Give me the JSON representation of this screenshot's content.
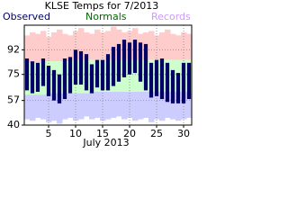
{
  "chart_data": {
    "type": "floating-bar",
    "title": "KLSE Temps for 7/2013",
    "xlabel": "July 2013",
    "categories": [
      1,
      2,
      3,
      4,
      5,
      6,
      7,
      8,
      9,
      10,
      11,
      12,
      13,
      14,
      15,
      16,
      17,
      18,
      19,
      20,
      21,
      22,
      23,
      24,
      25,
      26,
      27,
      28,
      29,
      30,
      31
    ],
    "series": [
      {
        "name": "Records",
        "color": "#cc99ff",
        "band_colors": [
          "#ffcccc",
          "#ccccff"
        ],
        "high": [
          102,
          104,
          103,
          105,
          101,
          104,
          106,
          103,
          102,
          105,
          107,
          104,
          103,
          106,
          104,
          105,
          108,
          106,
          104,
          105,
          107,
          103,
          104,
          105,
          102,
          104,
          106,
          103,
          102,
          104,
          103
        ],
        "low": [
          44,
          43,
          45,
          44,
          42,
          43,
          41,
          44,
          45,
          43,
          44,
          46,
          44,
          45,
          43,
          44,
          45,
          46,
          44,
          45,
          43,
          44,
          45,
          42,
          44,
          43,
          45,
          44,
          43,
          44,
          45
        ]
      },
      {
        "name": "Normals",
        "color": "#006600",
        "band_color": "#ccffcc",
        "high": [
          83,
          83,
          83,
          84,
          84,
          84,
          84,
          84,
          84,
          85,
          85,
          85,
          85,
          85,
          85,
          85,
          85,
          85,
          85,
          85,
          85,
          85,
          85,
          85,
          85,
          85,
          85,
          85,
          85,
          85,
          85
        ],
        "low": [
          61,
          61,
          61,
          61,
          62,
          62,
          62,
          62,
          62,
          62,
          62,
          62,
          63,
          63,
          63,
          63,
          63,
          63,
          63,
          63,
          63,
          63,
          63,
          63,
          63,
          63,
          63,
          63,
          63,
          63,
          63
        ]
      },
      {
        "name": "Observed",
        "color": "#000066",
        "high": [
          86,
          84,
          83,
          86,
          81,
          78,
          75,
          86,
          87,
          92,
          91,
          89,
          82,
          85,
          85,
          89,
          94,
          96,
          99,
          97,
          99,
          97,
          96,
          83,
          85,
          86,
          83,
          78,
          76,
          83,
          83
        ],
        "low": [
          64,
          62,
          63,
          67,
          60,
          57,
          55,
          58,
          62,
          68,
          68,
          64,
          62,
          66,
          64,
          64,
          67,
          70,
          73,
          75,
          76,
          70,
          64,
          59,
          60,
          58,
          56,
          55,
          55,
          55,
          58
        ]
      }
    ],
    "xlim": [
      0.5,
      31.5
    ],
    "xticks": [
      5,
      10,
      15,
      20,
      25,
      30
    ],
    "ylim": [
      40,
      109
    ],
    "yticks": [
      40,
      57,
      75,
      92
    ],
    "grid": true
  }
}
